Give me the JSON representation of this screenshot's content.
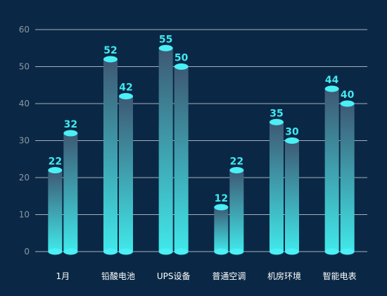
{
  "chart_data": {
    "type": "bar",
    "categories": [
      "1月",
      "铅酸电池",
      "UPS设备",
      "普通空调",
      "机房环境",
      "智能电表"
    ],
    "series": [
      {
        "values": [
          22,
          52,
          55,
          12,
          35,
          44
        ]
      },
      {
        "values": [
          32,
          42,
          50,
          22,
          30,
          40
        ]
      }
    ],
    "ylim": [
      0,
      60
    ],
    "yticks": [
      0,
      10,
      20,
      30,
      40,
      50,
      60
    ],
    "grid": true,
    "colors": {
      "background": "#0a2845",
      "bar_top": "#3e5873",
      "bar_bottom": "#40e8ea",
      "cap": "#4af0f5",
      "grid": "#ffffff",
      "tick_text": "#8a97a6",
      "category_text": "#ffffff",
      "value_text": "#40e8f0"
    }
  }
}
